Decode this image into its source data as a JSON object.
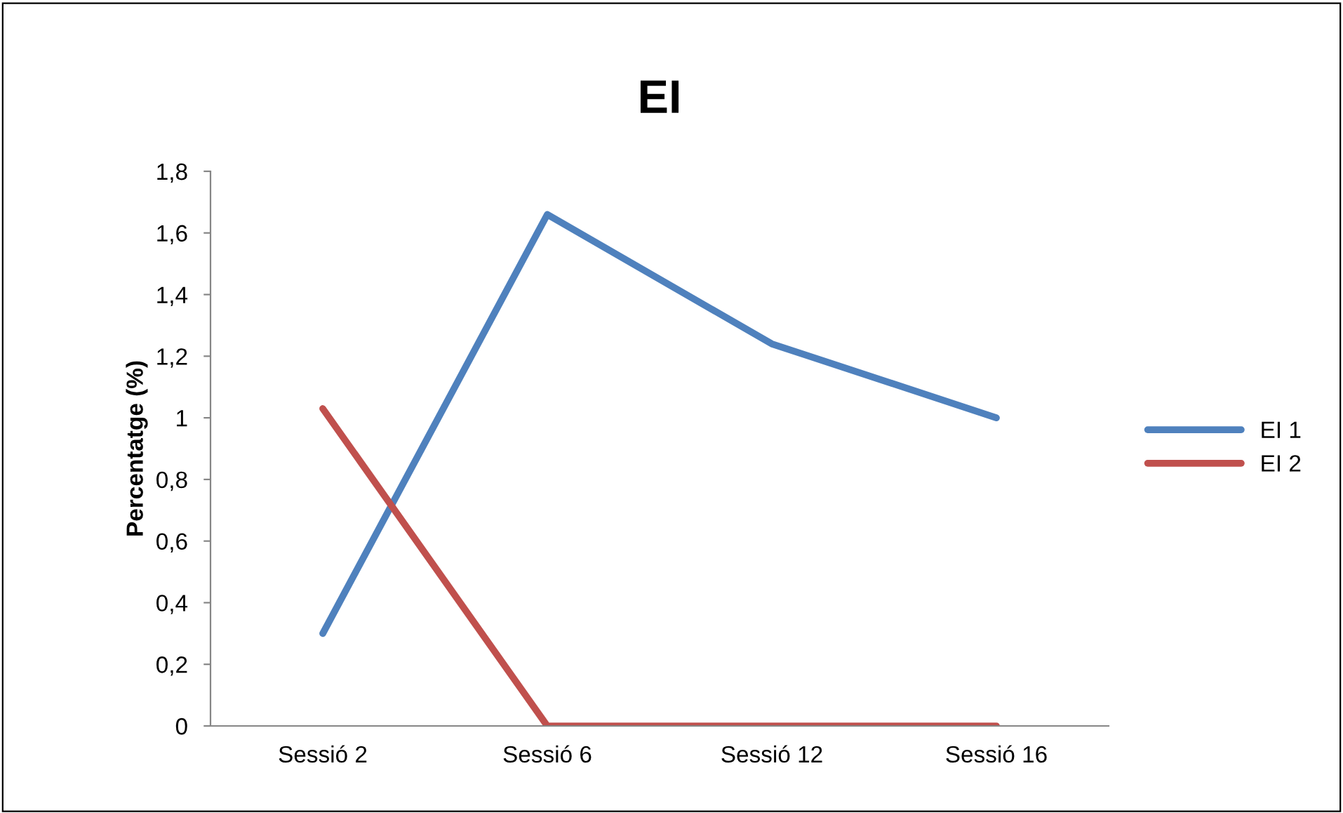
{
  "chart_data": {
    "type": "line",
    "title": "EI",
    "ylabel": "Percentatge (%)",
    "categories": [
      "Sessió 2",
      "Sessió 6",
      "Sessió 12",
      "Sessió 16"
    ],
    "series": [
      {
        "name": "EI 1",
        "color": "#4f81bd",
        "values": [
          0.3,
          1.66,
          1.24,
          1.0
        ]
      },
      {
        "name": "EI 2",
        "color": "#c0504d",
        "values": [
          1.03,
          0,
          0,
          0
        ]
      }
    ],
    "ylim": [
      0,
      1.8
    ],
    "yticks": [
      {
        "value": 0,
        "label": "0"
      },
      {
        "value": 0.2,
        "label": "0,2"
      },
      {
        "value": 0.4,
        "label": "0,4"
      },
      {
        "value": 0.6,
        "label": "0,6"
      },
      {
        "value": 0.8,
        "label": "0,8"
      },
      {
        "value": 1,
        "label": "1"
      },
      {
        "value": 1.2,
        "label": "1,2"
      },
      {
        "value": 1.4,
        "label": "1,4"
      },
      {
        "value": 1.6,
        "label": "1,6"
      },
      {
        "value": 1.8,
        "label": "1,8"
      }
    ],
    "grid": false,
    "legend": "right",
    "marker": "none",
    "line_style": "solid"
  }
}
